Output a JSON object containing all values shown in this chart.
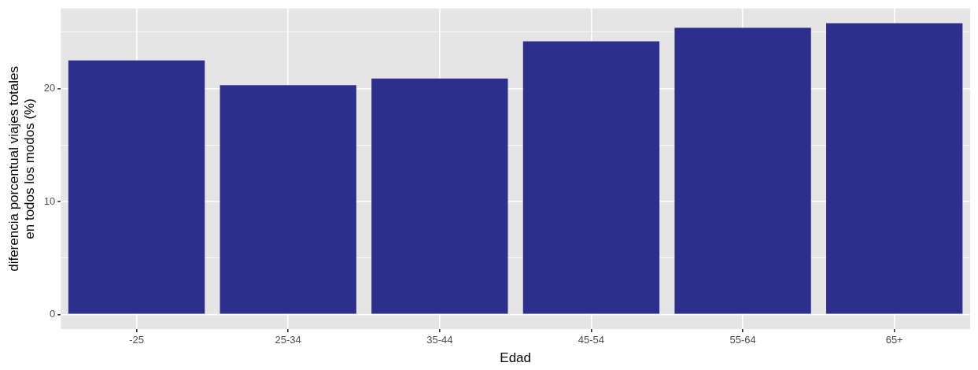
{
  "chart_data": {
    "type": "bar",
    "xlabel": "Edad",
    "ylabel": "diferencia porcentual viajes totales\nen todos los modos (%)",
    "categories": [
      "-25",
      "25-34",
      "35-44",
      "45-54",
      "55-64",
      "65+"
    ],
    "values": [
      22.5,
      20.3,
      20.9,
      24.2,
      25.4,
      25.8
    ],
    "color": "#2e2e8c",
    "ylim": [
      -1.3,
      27.1
    ],
    "yticks": [
      0,
      {
        "value": 5,
        "label": null
      },
      10,
      {
        "value": 15,
        "label": null
      },
      20,
      {
        "value": 25,
        "label": null
      }
    ],
    "grid": true,
    "legend": false
  }
}
